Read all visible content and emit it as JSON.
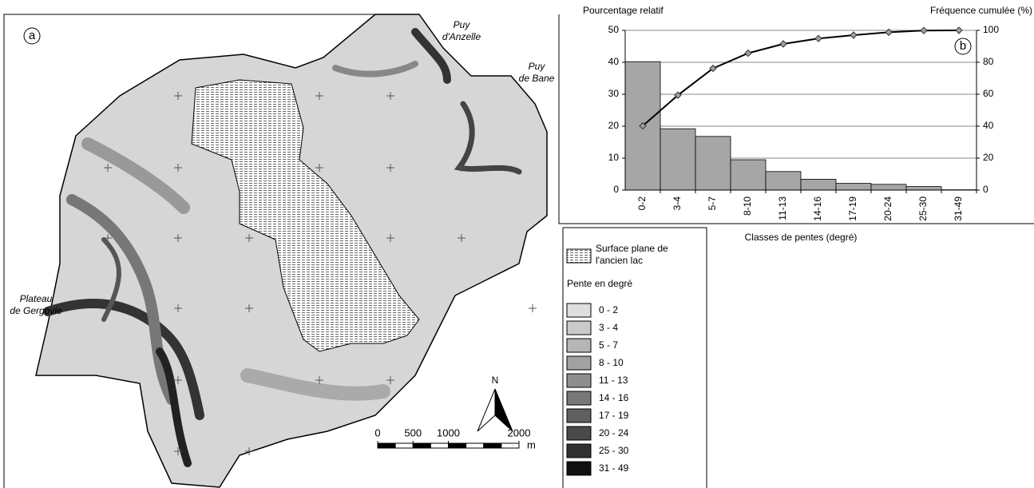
{
  "map": {
    "panel_label": "a",
    "labels": [
      {
        "lines": [
          "Puy",
          "d'Anzelle"
        ]
      },
      {
        "lines": [
          "Puy",
          "de Bane"
        ]
      },
      {
        "lines": [
          "Plateau",
          "de Gergovie"
        ]
      }
    ],
    "north": "N",
    "legend": {
      "lake": [
        "Surface plane de",
        "l'ancien lac"
      ],
      "title": "Pente en degré",
      "classes": [
        {
          "label": "0 - 2",
          "color": "#dedede"
        },
        {
          "label": "3 - 4",
          "color": "#cacaca"
        },
        {
          "label": "5 - 7",
          "color": "#b6b6b6"
        },
        {
          "label": "8 - 10",
          "color": "#a2a2a2"
        },
        {
          "label": "11 - 13",
          "color": "#8e8e8e"
        },
        {
          "label": "14 - 16",
          "color": "#787878"
        },
        {
          "label": "17 - 19",
          "color": "#606060"
        },
        {
          "label": "20 - 24",
          "color": "#4a4a4a"
        },
        {
          "label": "25 - 30",
          "color": "#323232"
        },
        {
          "label": "31 - 49",
          "color": "#111111"
        }
      ]
    },
    "scale_bar": {
      "ticks": [
        0,
        500,
        1000,
        2000
      ],
      "unit": "m"
    }
  },
  "chart_data": {
    "type": "bar",
    "panel_label": "b",
    "y_label": "Pourcentage relatif",
    "y2_label": "Fréquence cumulée (%)",
    "x_label": "Classes de pentes (degré)",
    "categories": [
      "0-2",
      "3-4",
      "5-7",
      "8-10",
      "11-13",
      "14-16",
      "17-19",
      "20-24",
      "25-30",
      "31-49"
    ],
    "series": [
      {
        "type": "bar",
        "color": "#a6a6a6",
        "values": [
          40.2,
          19.2,
          16.8,
          9.5,
          5.8,
          3.4,
          2.1,
          1.8,
          1.1,
          0.1
        ]
      },
      {
        "type": "line",
        "axis": "y2",
        "color": "#000000",
        "marker_color": "#a0a0a0",
        "values": [
          40.2,
          59.4,
          76.2,
          85.7,
          91.5,
          94.9,
          97.0,
          98.8,
          99.9,
          100
        ]
      }
    ],
    "ylim": [
      0,
      50
    ],
    "yticks": [
      0,
      10,
      20,
      30,
      40,
      50
    ],
    "y2lim": [
      0,
      100
    ],
    "y2ticks": [
      0,
      20,
      40,
      60,
      80,
      100
    ],
    "grid": true
  }
}
